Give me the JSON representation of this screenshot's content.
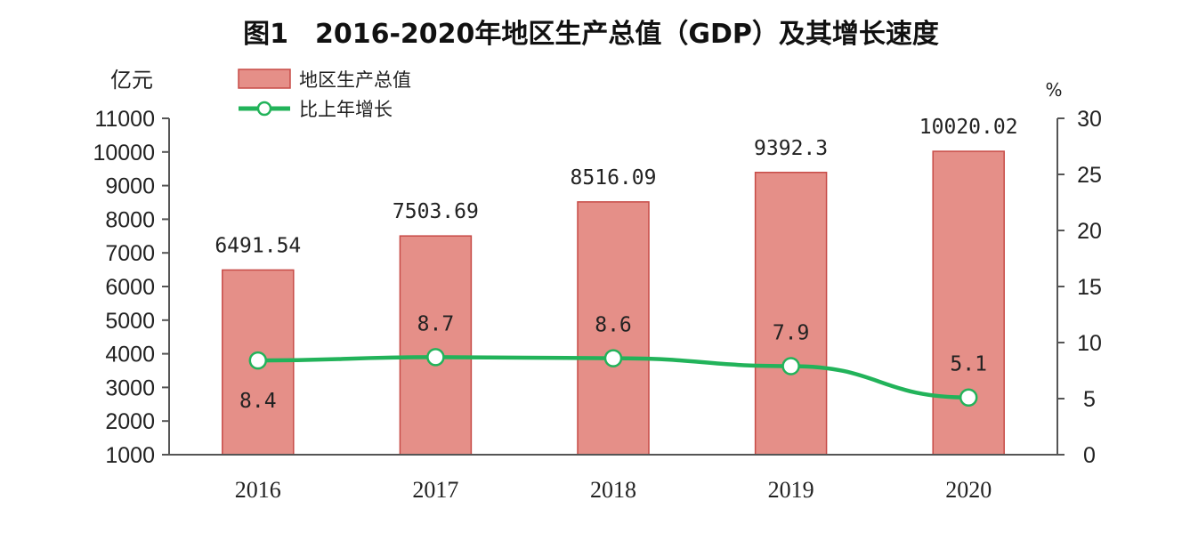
{
  "chart_data": {
    "type": "bar",
    "title": "图1　2016-2020年地区生产总值（GDP）及其增长速度",
    "categories": [
      "2016",
      "2017",
      "2018",
      "2019",
      "2020"
    ],
    "left_axis": {
      "unit_label": "亿元",
      "ylim": [
        1000,
        11000
      ],
      "ticks": [
        "1000",
        "2000",
        "3000",
        "4000",
        "5000",
        "6000",
        "7000",
        "8000",
        "9000",
        "10000",
        "11000"
      ]
    },
    "right_axis": {
      "unit_label": "%",
      "ylim": [
        0,
        30
      ],
      "ticks": [
        "0",
        "5",
        "10",
        "15",
        "20",
        "25",
        "30"
      ]
    },
    "grid": false,
    "legend_position": "top-left",
    "series": [
      {
        "name": "地区生产总值",
        "type": "bar",
        "axis": "left",
        "color": "#e58f88",
        "values": [
          6491.54,
          7503.69,
          8516.09,
          9392.3,
          10020.02
        ],
        "labels": [
          "6491.54",
          "7503.69",
          "8516.09",
          "9392.3",
          "10020.02"
        ]
      },
      {
        "name": "比上年增长",
        "type": "line",
        "axis": "right",
        "color": "#22b35a",
        "values": [
          8.4,
          8.7,
          8.6,
          7.9,
          5.1
        ],
        "labels": [
          "8.4",
          "8.7",
          "8.6",
          "7.9",
          "5.1"
        ],
        "label_placement": [
          "below",
          "above",
          "above",
          "above",
          "above"
        ]
      }
    ]
  }
}
